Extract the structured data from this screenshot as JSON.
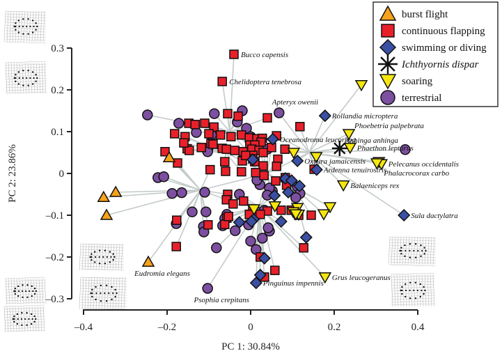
{
  "chart_data": {
    "type": "scatter",
    "title": "",
    "xlabel": "PC 1: 30.84%",
    "ylabel": "PC 2: 23.86%",
    "xlim": [
      -0.4,
      0.4
    ],
    "ylim": [
      -0.3,
      0.3
    ],
    "xticks": [
      -0.4,
      -0.2,
      0,
      0.2,
      0.4
    ],
    "xtick_labels": [
      "–0.4",
      "–0.2",
      "0",
      "0.2",
      "0.4"
    ],
    "yticks": [
      -0.3,
      -0.2,
      -0.1,
      0,
      0.1,
      0.2,
      0.3
    ],
    "ytick_labels": [
      "–0.3",
      "–0.2",
      "–0.1",
      "0",
      "0.1",
      "0.2",
      "0.3"
    ],
    "grid": false,
    "legend_position": "top-right",
    "legend": [
      {
        "key": "burst",
        "label": "burst flight",
        "marker": "triangle-up",
        "color": "#f7a21b",
        "italic": false
      },
      {
        "key": "flap",
        "label": "continuous flapping",
        "marker": "square",
        "color": "#e8202a",
        "italic": false
      },
      {
        "key": "swim",
        "label": "swimming or diving",
        "marker": "diamond",
        "color": "#3b4fa3",
        "italic": false
      },
      {
        "key": "ich",
        "label": "Ichthyornis dispar",
        "marker": "asterisk",
        "color": "#111111",
        "italic": true
      },
      {
        "key": "soar",
        "label": "soaring",
        "marker": "triangle-down",
        "color": "#f5e60f",
        "italic": false
      },
      {
        "key": "terr",
        "label": "terrestrial",
        "marker": "circle",
        "color": "#7d4fa0",
        "italic": false
      }
    ],
    "tree_color": "#c3cbc9",
    "series": [
      {
        "name": "burst flight",
        "key": "burst",
        "points": [
          [
            -0.195,
            0.038
          ],
          [
            -0.323,
            -0.045
          ],
          [
            -0.352,
            -0.057
          ],
          [
            -0.345,
            -0.1
          ],
          [
            -0.245,
            -0.212
          ]
        ]
      },
      {
        "name": "continuous flapping",
        "key": "flap",
        "points": [
          [
            -0.04,
            0.285
          ],
          [
            -0.068,
            0.22
          ],
          [
            -0.148,
            0.12
          ],
          [
            -0.11,
            0.12
          ],
          [
            -0.055,
            0.143
          ],
          [
            -0.03,
            0.137
          ],
          [
            -0.182,
            0.095
          ],
          [
            -0.133,
            0.117
          ],
          [
            -0.088,
            0.111
          ],
          [
            -0.157,
            0.088
          ],
          [
            -0.022,
            0.092
          ],
          [
            -0.1,
            0.095
          ],
          [
            -0.072,
            0.092
          ],
          [
            -0.047,
            0.088
          ],
          [
            -0.095,
            0.072
          ],
          [
            -0.152,
            0.059
          ],
          [
            -0.147,
            0.055
          ],
          [
            -0.09,
            0.07
          ],
          [
            -0.118,
            0.062
          ],
          [
            -0.068,
            0.06
          ],
          [
            -0.058,
            0.058
          ],
          [
            -0.038,
            0.055
          ],
          [
            -0.003,
            0.085
          ],
          [
            0.015,
            0.083
          ],
          [
            0.028,
            0.084
          ],
          [
            0.025,
            0.075
          ],
          [
            0.062,
            0.09
          ],
          [
            0.118,
            0.112
          ],
          [
            -0.002,
            0.068
          ],
          [
            0.01,
            0.068
          ],
          [
            0.003,
            0.058
          ],
          [
            0.02,
            0.055
          ],
          [
            0.03,
            0.05
          ],
          [
            0.082,
            0.058
          ],
          [
            0.05,
            0.062
          ],
          [
            0.005,
            0.043
          ],
          [
            0.005,
            0.035
          ],
          [
            0.01,
            0.028
          ],
          [
            0.065,
            0.034
          ],
          [
            -0.205,
            0.052
          ],
          [
            -0.16,
            0.073
          ],
          [
            -0.175,
            0.025
          ],
          [
            -0.062,
            0.028
          ],
          [
            -0.02,
            0.03
          ],
          [
            0.03,
            0.018
          ],
          [
            0.062,
            0.017
          ],
          [
            -0.097,
            0.009
          ],
          [
            -0.06,
            0.005
          ],
          [
            -0.022,
            0.004
          ],
          [
            0.012,
            0.002
          ],
          [
            0.032,
            -0.005
          ],
          [
            0.06,
            -0.018
          ],
          [
            0.083,
            -0.01
          ],
          [
            0.086,
            -0.028
          ],
          [
            -0.055,
            -0.05
          ],
          [
            -0.058,
            -0.063
          ],
          [
            -0.017,
            -0.066
          ],
          [
            -0.042,
            -0.073
          ],
          [
            0.005,
            -0.085
          ],
          [
            -0.003,
            -0.098
          ],
          [
            0.04,
            -0.09
          ],
          [
            0.073,
            -0.088
          ],
          [
            0.115,
            -0.1
          ],
          [
            -0.177,
            -0.112
          ],
          [
            -0.102,
            -0.123
          ],
          [
            -0.057,
            -0.107
          ],
          [
            0.023,
            -0.098
          ],
          [
            0.097,
            -0.088
          ],
          [
            0.145,
            -0.1
          ],
          [
            -0.178,
            -0.175
          ],
          [
            -0.062,
            -0.122
          ],
          [
            -0.053,
            -0.103
          ],
          [
            0.127,
            -0.178
          ],
          [
            0.033,
            -0.248
          ],
          [
            0.058,
            -0.232
          ],
          [
            0.152,
            0.01
          ],
          [
            0.023,
            -0.2
          ],
          [
            -0.018,
            0.052
          ],
          [
            -0.012,
            0.043
          ],
          [
            0.04,
            0.133
          ]
        ]
      },
      {
        "name": "swimming or diving",
        "key": "swim",
        "points": [
          [
            0.178,
            0.138
          ],
          [
            0.053,
            0.082
          ],
          [
            0.005,
            0.033
          ],
          [
            0.112,
            0.03
          ],
          [
            0.158,
            0.009
          ],
          [
            0.083,
            -0.012
          ],
          [
            0.057,
            -0.053
          ],
          [
            0.117,
            -0.03
          ],
          [
            0.09,
            -0.045
          ],
          [
            0.007,
            -0.11
          ],
          [
            -0.027,
            -0.117
          ],
          [
            0.002,
            -0.115
          ],
          [
            0.073,
            -0.115
          ],
          [
            0.133,
            -0.153
          ],
          [
            0.033,
            -0.203
          ],
          [
            0.023,
            -0.243
          ],
          [
            0.013,
            -0.262
          ],
          [
            0.367,
            -0.1
          ],
          [
            0.098,
            -0.017
          ]
        ]
      },
      {
        "name": "Ichthyornis dispar",
        "key": "ich",
        "points": [
          [
            0.213,
            0.06
          ]
        ]
      },
      {
        "name": "soaring",
        "key": "soar",
        "points": [
          [
            0.265,
            0.212
          ],
          [
            0.235,
            0.095
          ],
          [
            0.238,
            0.062
          ],
          [
            0.157,
            0.04
          ],
          [
            0.103,
            0.05
          ],
          [
            0.307,
            0.028
          ],
          [
            0.313,
            0.023
          ],
          [
            0.302,
            0.025
          ],
          [
            0.222,
            -0.028
          ],
          [
            0.058,
            -0.078
          ],
          [
            0.112,
            -0.082
          ],
          [
            0.19,
            -0.08
          ],
          [
            0.175,
            -0.097
          ],
          [
            0.178,
            -0.248
          ],
          [
            0.115,
            -0.098
          ],
          [
            0.102,
            -0.092
          ],
          [
            0.108,
            -0.097
          ],
          [
            0.008,
            -0.085
          ]
        ]
      },
      {
        "name": "terrestrial",
        "key": "terr",
        "points": [
          [
            -0.247,
            0.14
          ],
          [
            -0.172,
            0.12
          ],
          [
            -0.087,
            0.143
          ],
          [
            -0.02,
            0.15
          ],
          [
            -0.032,
            0.123
          ],
          [
            -0.01,
            0.108
          ],
          [
            -0.13,
            0.098
          ],
          [
            -0.094,
            0.092
          ],
          [
            -0.102,
            0.06
          ],
          [
            -0.103,
            0.052
          ],
          [
            0.068,
            0.145
          ],
          [
            0.04,
            0.058
          ],
          [
            0.0,
            0.088
          ],
          [
            0.008,
            0.072
          ],
          [
            -0.222,
            -0.01
          ],
          [
            -0.208,
            -0.008
          ],
          [
            -0.188,
            -0.048
          ],
          [
            -0.165,
            -0.046
          ],
          [
            -0.11,
            -0.045
          ],
          [
            -0.14,
            -0.092
          ],
          [
            -0.107,
            -0.092
          ],
          [
            -0.113,
            -0.127
          ],
          [
            -0.057,
            -0.098
          ],
          [
            -0.062,
            -0.108
          ],
          [
            -0.067,
            -0.125
          ],
          [
            -0.027,
            -0.05
          ],
          [
            0.017,
            -0.093
          ],
          [
            0.033,
            -0.088
          ],
          [
            -0.037,
            -0.137
          ],
          [
            0.028,
            -0.155
          ],
          [
            0.013,
            -0.182
          ],
          [
            -0.082,
            -0.178
          ],
          [
            0.0,
            -0.162
          ],
          [
            0.052,
            -0.042
          ],
          [
            0.045,
            -0.035
          ],
          [
            0.022,
            -0.027
          ],
          [
            0.015,
            -0.016
          ],
          [
            0.112,
            -0.032
          ],
          [
            0.118,
            -0.048
          ],
          [
            0.108,
            -0.058
          ],
          [
            0.045,
            -0.138
          ],
          [
            0.042,
            -0.13
          ],
          [
            -0.112,
            -0.14
          ],
          [
            -0.178,
            -0.12
          ],
          [
            0.37,
            0.057
          ],
          [
            -0.103,
            -0.275
          ],
          [
            0.04,
            -0.052
          ],
          [
            -0.005,
            -0.123
          ]
        ]
      }
    ],
    "annotations": [
      {
        "text": "Bucco capensis",
        "x": -0.04,
        "y": 0.285,
        "side": "right"
      },
      {
        "text": "Chelidoptera tenebrosa",
        "x": -0.068,
        "y": 0.22,
        "side": "right"
      },
      {
        "text": "Apteryx owenii",
        "x": 0.068,
        "y": 0.145,
        "side": "above"
      },
      {
        "text": "Rollandia microptera",
        "x": 0.178,
        "y": 0.138,
        "side": "right"
      },
      {
        "text": "Oceanodroma leucorhoa",
        "x": 0.053,
        "y": 0.082,
        "side": "right"
      },
      {
        "text": "Phoebetria palpebrata",
        "x": 0.235,
        "y": 0.095,
        "side": "right-above"
      },
      {
        "text": "Anhinga anhinga",
        "x": 0.213,
        "y": 0.06,
        "side": "right-above"
      },
      {
        "text": "Phaethon lepturus",
        "x": 0.238,
        "y": 0.062,
        "side": "right"
      },
      {
        "text": "Oxyura jamaicensis",
        "x": 0.112,
        "y": 0.03,
        "side": "right"
      },
      {
        "text": "Ardenna tenuirostris",
        "x": 0.158,
        "y": 0.009,
        "side": "right"
      },
      {
        "text": "Pelecanus occidentalis",
        "x": 0.313,
        "y": 0.023,
        "side": "right"
      },
      {
        "text": "Phalacrocorax carbo",
        "x": 0.302,
        "y": 0.025,
        "side": "right-below"
      },
      {
        "text": "Balaeniceps rex",
        "x": 0.222,
        "y": -0.028,
        "side": "right"
      },
      {
        "text": "Sula dactylatra",
        "x": 0.367,
        "y": -0.1,
        "side": "right"
      },
      {
        "text": "Eudromia elegans",
        "x": -0.245,
        "y": -0.212,
        "side": "below"
      },
      {
        "text": "Grus leucogeranus",
        "x": 0.178,
        "y": -0.248,
        "side": "right"
      },
      {
        "text": "Pinguinus impennis",
        "x": 0.013,
        "y": -0.262,
        "side": "right"
      },
      {
        "text": "Psophia crepitans",
        "x": -0.103,
        "y": -0.275,
        "side": "below"
      }
    ],
    "shape_insets": [
      {
        "name": "upper-left deformation grid 1",
        "position": "left of PC2 0.3"
      },
      {
        "name": "upper-left deformation grid 2",
        "position": "left of PC2 0.2"
      },
      {
        "name": "lower-left deformation grid 1",
        "position": "near PC2 -0.2"
      },
      {
        "name": "lower-left deformation grid 2",
        "position": "near PC2 -0.3"
      },
      {
        "name": "lower-left deformation grid 3",
        "position": "near PC2 -0.3 (second)"
      },
      {
        "name": "lower-left deformation grid 4",
        "position": "below PC2 -0.3"
      },
      {
        "name": "lower-right deformation grid 1",
        "position": "near PC1 0.4, PC2 -0.2"
      },
      {
        "name": "lower-right deformation grid 2",
        "position": "near PC1 0.4, PC2 -0.3"
      }
    ]
  }
}
